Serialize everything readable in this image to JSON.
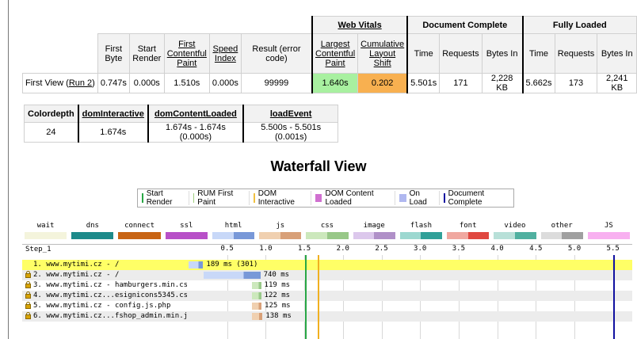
{
  "results": {
    "group_headers": {
      "web_vitals": "Web Vitals",
      "document_complete": "Document Complete",
      "fully_loaded": "Fully Loaded"
    },
    "columns": {
      "first_byte": "First Byte",
      "start_render": "Start Render",
      "fcp": "First Contentful Paint",
      "speed_index": "Speed Index",
      "result": "Result (error code)",
      "lcp": "Largest Contentful Paint",
      "cls": "Cumulative Layout Shift",
      "dc_time": "Time",
      "dc_requests": "Requests",
      "dc_bytes": "Bytes In",
      "fl_time": "Time",
      "fl_requests": "Requests",
      "fl_bytes": "Bytes In"
    },
    "row": {
      "label": "First View (",
      "run_link": "Run 2",
      "label_end": ")",
      "first_byte": "0.747s",
      "start_render": "0.000s",
      "fcp": "1.510s",
      "speed_index": "0.000s",
      "result": "99999",
      "lcp": "1.640s",
      "cls": "0.202",
      "dc_time": "5.501s",
      "dc_requests": "171",
      "dc_bytes": "2,228 KB",
      "fl_time": "5.662s",
      "fl_requests": "173",
      "fl_bytes": "2,241 KB"
    }
  },
  "dom_timings": {
    "headers": {
      "colordepth": "Colordepth",
      "dom_interactive": "domInteractive",
      "dom_content_loaded": "domContentLoaded",
      "load_event": "loadEvent"
    },
    "values": {
      "colordepth": "24",
      "dom_interactive": "1.674s",
      "dom_content_loaded": "1.674s - 1.674s (0.000s)",
      "load_event": "5.500s - 5.501s (0.001s)"
    }
  },
  "waterfall_title": "Waterfall View",
  "legend_markers": [
    {
      "label": "Start Render",
      "color": "#28a745",
      "kind": "line"
    },
    {
      "label": "RUM First Paint",
      "color": "#a0d080",
      "kind": "line"
    },
    {
      "label": "DOM Interactive",
      "color": "#f0c040",
      "kind": "line"
    },
    {
      "label": "DOM Content Loaded",
      "color": "#d070d0",
      "kind": "box"
    },
    {
      "label": "On Load",
      "color": "#b0b8f0",
      "kind": "box"
    },
    {
      "label": "Document Complete",
      "color": "#1010a0",
      "kind": "line"
    }
  ],
  "legend_types": [
    {
      "label": "wait",
      "colors": [
        "#f4f4dc"
      ]
    },
    {
      "label": "dns",
      "colors": [
        "#1d8a8a"
      ]
    },
    {
      "label": "connect",
      "colors": [
        "#c86414"
      ]
    },
    {
      "label": "ssl",
      "colors": [
        "#b850c8"
      ]
    },
    {
      "label": "html",
      "colors": [
        "#c8d8f8",
        "#7898d8"
      ]
    },
    {
      "label": "js",
      "colors": [
        "#f0d0b0",
        "#d8a078"
      ]
    },
    {
      "label": "css",
      "colors": [
        "#cce8bc",
        "#98c888"
      ]
    },
    {
      "label": "image",
      "colors": [
        "#dcc8ec",
        "#b090c8"
      ]
    },
    {
      "label": "flash",
      "colors": [
        "#9cd8d0",
        "#30a098"
      ]
    },
    {
      "label": "font",
      "colors": [
        "#f0a8a0",
        "#e04840"
      ]
    },
    {
      "label": "video",
      "colors": [
        "#b8e0d8",
        "#50b0a0"
      ]
    },
    {
      "label": "other",
      "colors": [
        "#dcdcdc",
        "#a0a0a0"
      ]
    },
    {
      "label": "JS Execution",
      "colors": [
        "#f8b0f0"
      ]
    }
  ],
  "waterfall": {
    "step_label": "Step_1",
    "ticks": [
      "0.5",
      "1.0",
      "1.5",
      "2.0",
      "2.5",
      "3.0",
      "3.5",
      "4.0",
      "4.5",
      "5.0",
      "5.5"
    ],
    "markers": [
      {
        "name": "start-render",
        "time_s": 1.51,
        "color": "#28a745"
      },
      {
        "name": "dom-interactive",
        "time_s": 1.674,
        "color": "#f0b020"
      },
      {
        "name": "document-complete",
        "time_s": 5.501,
        "color": "#1010a0"
      }
    ],
    "requests": [
      {
        "label": "1. www.mytimi.cz - /",
        "timing": "189 ms (301)",
        "secure": false,
        "highlight": true,
        "start_s": 0.0,
        "end_s": 0.189,
        "type": "html"
      },
      {
        "label": "2. www.mytimi.cz - /",
        "timing": "740 ms",
        "secure": true,
        "highlight": false,
        "start_s": 0.19,
        "end_s": 0.93,
        "type": "html"
      },
      {
        "label": "3. www.mytimi.cz - hamburgers.min.css",
        "timing": "119 ms",
        "secure": true,
        "highlight": false,
        "start_s": 0.82,
        "end_s": 0.94,
        "type": "css"
      },
      {
        "label": "4. www.mytimi.cz...esignicons5345.css",
        "timing": "122 ms",
        "secure": true,
        "highlight": false,
        "start_s": 0.82,
        "end_s": 0.94,
        "type": "css"
      },
      {
        "label": "5. www.mytimi.cz - config.js.php",
        "timing": "125 ms",
        "secure": true,
        "highlight": false,
        "start_s": 0.82,
        "end_s": 0.945,
        "type": "js"
      },
      {
        "label": "6. www.mytimi.cz...fshop_admin.min.js",
        "timing": "138 ms",
        "secure": true,
        "highlight": false,
        "start_s": 0.82,
        "end_s": 0.958,
        "type": "js"
      }
    ]
  }
}
